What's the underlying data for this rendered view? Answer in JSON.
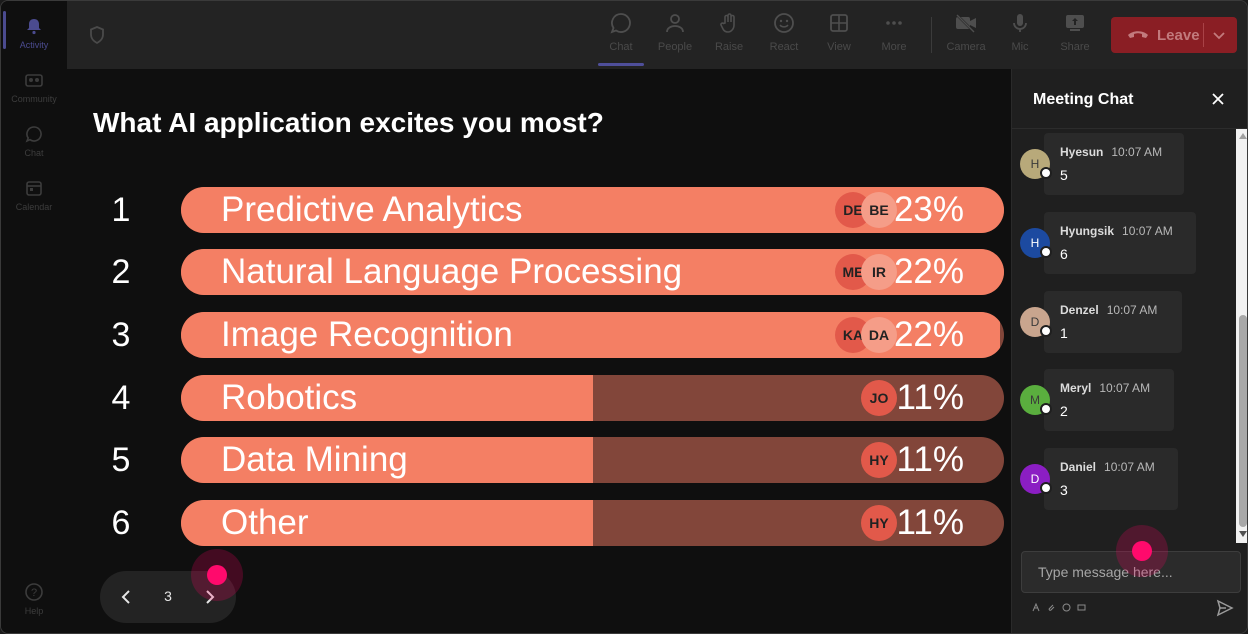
{
  "rail": {
    "items": [
      {
        "label": "Activity",
        "icon": "bell-icon",
        "active": true
      },
      {
        "label": "Community",
        "icon": "community-icon",
        "active": false
      },
      {
        "label": "Chat",
        "icon": "chat-icon",
        "active": false
      },
      {
        "label": "Calendar",
        "icon": "calendar-icon",
        "active": false
      }
    ],
    "help_label": "Help"
  },
  "toolbar": {
    "buttons": [
      {
        "label": "Chat",
        "icon": "chat-icon",
        "active": true
      },
      {
        "label": "People",
        "icon": "people-icon"
      },
      {
        "label": "Raise",
        "icon": "hand-icon"
      },
      {
        "label": "React",
        "icon": "smiley-icon"
      },
      {
        "label": "View",
        "icon": "grid-icon"
      },
      {
        "label": "More",
        "icon": "more-icon"
      },
      {
        "label": "Camera",
        "icon": "camera-off-icon"
      },
      {
        "label": "Mic",
        "icon": "mic-icon"
      },
      {
        "label": "Share",
        "icon": "share-icon"
      }
    ],
    "leave_label": "Leave"
  },
  "poll": {
    "title": "What AI application excites you most?",
    "options": [
      {
        "rank": "1",
        "label": "Predictive Analytics",
        "percent_text": "23%",
        "fraction": 1.0,
        "avatars": [
          "DE",
          "BE"
        ]
      },
      {
        "rank": "2",
        "label": "Natural Language Processing",
        "percent_text": "22%",
        "fraction": 1.0,
        "avatars": [
          "ME",
          "IR"
        ]
      },
      {
        "rank": "3",
        "label": "Image Recognition",
        "percent_text": "22%",
        "fraction": 0.995,
        "avatars": [
          "KA",
          "DA"
        ]
      },
      {
        "rank": "4",
        "label": "Robotics",
        "percent_text": "11%",
        "fraction": 0.5,
        "avatars": [
          "JO"
        ]
      },
      {
        "rank": "5",
        "label": "Data Mining",
        "percent_text": "11%",
        "fraction": 0.5,
        "avatars": [
          "HY"
        ]
      },
      {
        "rank": "6",
        "label": "Other",
        "percent_text": "11%",
        "fraction": 0.5,
        "avatars": [
          "HY"
        ]
      }
    ],
    "page": "3"
  },
  "chat": {
    "title": "Meeting Chat",
    "messages": [
      {
        "initial": "H",
        "name": "Hyesun",
        "time": "10:07 AM",
        "text": "5",
        "color": "#b8a97a"
      },
      {
        "initial": "H",
        "name": "Hyungsik",
        "time": "10:07 AM",
        "text": "6",
        "color": "#1c4aa0"
      },
      {
        "initial": "D",
        "name": "Denzel",
        "time": "10:07 AM",
        "text": "1",
        "color": "#c9a58e"
      },
      {
        "initial": "M",
        "name": "Meryl",
        "time": "10:07 AM",
        "text": "2",
        "color": "#5aae3e"
      },
      {
        "initial": "D",
        "name": "Daniel",
        "time": "10:07 AM",
        "text": "3",
        "color": "#8b1ec3"
      }
    ],
    "compose_placeholder": "Type message here..."
  },
  "colors": {
    "bar_fill": "#f47f64",
    "bar_track": "#82463a",
    "leave": "#8a1e24",
    "accent": "#4f4f9a",
    "cursor": "#ff0a6c"
  }
}
